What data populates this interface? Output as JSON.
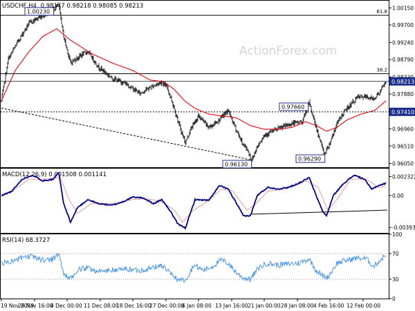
{
  "header": {
    "symbol": "USDCHF,H4",
    "ohlc": "0.98147 0.98218 0.98085 0.98213",
    "watermark": "ActionForex.com"
  },
  "chart_data": [
    {
      "type": "candlestick",
      "title": "USDCHF,H4",
      "ylim": [
        0.9595,
        1.0034
      ],
      "y_ticks": [
        "1.00150",
        "0.99700",
        "0.99240",
        "0.98790",
        "0.98330",
        "0.97880",
        "0.97410",
        "0.96960",
        "0.96510",
        "0.96050"
      ],
      "y_tick_values": [
        1.0015,
        0.997,
        0.9924,
        0.9879,
        0.9833,
        0.9788,
        0.9741,
        0.9696,
        0.9651,
        0.9605
      ],
      "last_price": 0.98213,
      "last_price_label": "0.98213",
      "support_label": "0.97410",
      "support_value": 0.9741,
      "fib_levels": [
        {
          "label": "61.8",
          "value": 0.99955
        },
        {
          "label": "38.2",
          "value": 0.98415
        }
      ],
      "annotations": [
        {
          "label": "1.00230",
          "value": 1.0023,
          "bar": 83
        },
        {
          "label": "0.97660",
          "value": 0.9766,
          "bar": 445
        },
        {
          "label": "0.96290",
          "value": 0.9629,
          "bar": 467
        },
        {
          "label": "0.96130",
          "value": 0.9613,
          "bar": 362
        }
      ],
      "trendline": {
        "from_value": 0.9751,
        "to_value": 0.9614
      },
      "path_anchors": [
        [
          0,
          0.977
        ],
        [
          10,
          0.988
        ],
        [
          25,
          0.993
        ],
        [
          40,
          0.9975
        ],
        [
          55,
          0.999
        ],
        [
          70,
          1.0005
        ],
        [
          83,
          1.0023
        ],
        [
          90,
          0.994
        ],
        [
          100,
          0.987
        ],
        [
          115,
          0.989
        ],
        [
          125,
          0.99
        ],
        [
          140,
          0.986
        ],
        [
          160,
          0.983
        ],
        [
          180,
          0.9815
        ],
        [
          200,
          0.979
        ],
        [
          210,
          0.98
        ],
        [
          220,
          0.981
        ],
        [
          232,
          0.982
        ],
        [
          240,
          0.9805
        ],
        [
          250,
          0.975
        ],
        [
          258,
          0.97
        ],
        [
          266,
          0.966
        ],
        [
          275,
          0.97
        ],
        [
          285,
          0.973
        ],
        [
          300,
          0.97
        ],
        [
          312,
          0.9715
        ],
        [
          320,
          0.973
        ],
        [
          328,
          0.9745
        ],
        [
          338,
          0.97
        ],
        [
          348,
          0.966
        ],
        [
          356,
          0.964
        ],
        [
          362,
          0.9613
        ],
        [
          370,
          0.965
        ],
        [
          380,
          0.968
        ],
        [
          392,
          0.969
        ],
        [
          405,
          0.97
        ],
        [
          420,
          0.971
        ],
        [
          435,
          0.9715
        ],
        [
          445,
          0.9766
        ],
        [
          452,
          0.972
        ],
        [
          460,
          0.967
        ],
        [
          467,
          0.9629
        ],
        [
          475,
          0.966
        ],
        [
          485,
          0.971
        ],
        [
          495,
          0.974
        ],
        [
          505,
          0.976
        ],
        [
          515,
          0.978
        ],
        [
          528,
          0.978
        ],
        [
          538,
          0.9775
        ],
        [
          548,
          0.9795
        ],
        [
          556,
          0.9821
        ]
      ],
      "ma_anchors": [
        [
          0,
          0.977
        ],
        [
          20,
          0.985
        ],
        [
          40,
          0.99
        ],
        [
          60,
          0.994
        ],
        [
          80,
          0.996
        ],
        [
          100,
          0.993
        ],
        [
          130,
          0.9895
        ],
        [
          160,
          0.987
        ],
        [
          190,
          0.985
        ],
        [
          215,
          0.9825
        ],
        [
          235,
          0.982
        ],
        [
          250,
          0.98
        ],
        [
          265,
          0.977
        ],
        [
          280,
          0.975
        ],
        [
          300,
          0.9735
        ],
        [
          320,
          0.973
        ],
        [
          340,
          0.9725
        ],
        [
          360,
          0.9705
        ],
        [
          380,
          0.9695
        ],
        [
          400,
          0.9695
        ],
        [
          420,
          0.97
        ],
        [
          440,
          0.9715
        ],
        [
          455,
          0.9705
        ],
        [
          470,
          0.969
        ],
        [
          485,
          0.97
        ],
        [
          500,
          0.972
        ],
        [
          520,
          0.9735
        ],
        [
          540,
          0.9745
        ],
        [
          556,
          0.977
        ]
      ]
    },
    {
      "type": "line",
      "title": "MACD(12,26,9) 0.001508 0.001141",
      "ylim": [
        -0.0046,
        0.0033
      ],
      "y_ticks": [
        "0.002322",
        "0.00",
        "-0.003932"
      ],
      "y_tick_values": [
        0.002322,
        0.0,
        -0.003932
      ],
      "macd_anchors": [
        [
          0,
          0.0
        ],
        [
          15,
          0.0005
        ],
        [
          30,
          0.002
        ],
        [
          45,
          0.0025
        ],
        [
          60,
          0.0018
        ],
        [
          75,
          0.002
        ],
        [
          83,
          0.0028
        ],
        [
          90,
          -0.001
        ],
        [
          100,
          -0.0033
        ],
        [
          110,
          -0.0015
        ],
        [
          125,
          -0.0005
        ],
        [
          140,
          -0.001
        ],
        [
          160,
          -0.0012
        ],
        [
          175,
          -0.0008
        ],
        [
          190,
          -0.0002
        ],
        [
          205,
          -0.0003
        ],
        [
          220,
          -0.001
        ],
        [
          232,
          -0.0005
        ],
        [
          245,
          -0.002
        ],
        [
          255,
          -0.0035
        ],
        [
          266,
          -0.004
        ],
        [
          280,
          -0.0005
        ],
        [
          300,
          -0.0006
        ],
        [
          315,
          0.0012
        ],
        [
          328,
          0.0008
        ],
        [
          340,
          -0.001
        ],
        [
          350,
          -0.0025
        ],
        [
          360,
          -0.0025
        ],
        [
          370,
          0.0
        ],
        [
          385,
          0.001
        ],
        [
          400,
          0.0008
        ],
        [
          415,
          0.001
        ],
        [
          430,
          0.0015
        ],
        [
          445,
          0.0022
        ],
        [
          455,
          0.0
        ],
        [
          465,
          -0.002
        ],
        [
          470,
          -0.0025
        ],
        [
          480,
          0.0
        ],
        [
          495,
          0.0015
        ],
        [
          510,
          0.0025
        ],
        [
          525,
          0.002
        ],
        [
          535,
          0.0008
        ],
        [
          545,
          0.0012
        ],
        [
          556,
          0.0015
        ]
      ],
      "signal_anchors": [
        [
          0,
          -0.0002
        ],
        [
          20,
          0.0008
        ],
        [
          40,
          0.002
        ],
        [
          60,
          0.002
        ],
        [
          85,
          0.0022
        ],
        [
          98,
          -0.0005
        ],
        [
          110,
          -0.0022
        ],
        [
          130,
          -0.001
        ],
        [
          160,
          -0.001
        ],
        [
          190,
          -0.0005
        ],
        [
          210,
          -0.0004
        ],
        [
          230,
          -0.0007
        ],
        [
          250,
          -0.0018
        ],
        [
          262,
          -0.0033
        ],
        [
          275,
          -0.002
        ],
        [
          300,
          -0.0006
        ],
        [
          318,
          0.0008
        ],
        [
          335,
          0.0005
        ],
        [
          355,
          -0.0018
        ],
        [
          368,
          -0.001
        ],
        [
          385,
          0.0005
        ],
        [
          410,
          0.0008
        ],
        [
          440,
          0.0018
        ],
        [
          458,
          0.001
        ],
        [
          472,
          -0.0018
        ],
        [
          485,
          -0.0005
        ],
        [
          505,
          0.002
        ],
        [
          528,
          0.002
        ],
        [
          545,
          0.001
        ],
        [
          556,
          0.0011
        ]
      ],
      "trendline": {
        "from_value": -0.0023,
        "to_value": -0.0018
      }
    },
    {
      "type": "line",
      "title": "RSI(14) 68.3727",
      "ylim": [
        0,
        100
      ],
      "y_ticks": [
        "100",
        "70",
        "30",
        "0"
      ],
      "y_tick_values": [
        100,
        70,
        30,
        0
      ],
      "rsi_anchors": [
        [
          0,
          55
        ],
        [
          15,
          58
        ],
        [
          30,
          63
        ],
        [
          45,
          65
        ],
        [
          60,
          60
        ],
        [
          75,
          62
        ],
        [
          83,
          70
        ],
        [
          90,
          38
        ],
        [
          100,
          30
        ],
        [
          112,
          45
        ],
        [
          125,
          48
        ],
        [
          140,
          42
        ],
        [
          160,
          44
        ],
        [
          180,
          46
        ],
        [
          200,
          44
        ],
        [
          220,
          48
        ],
        [
          232,
          52
        ],
        [
          245,
          38
        ],
        [
          255,
          30
        ],
        [
          266,
          28
        ],
        [
          278,
          52
        ],
        [
          292,
          44
        ],
        [
          305,
          50
        ],
        [
          318,
          60
        ],
        [
          328,
          55
        ],
        [
          340,
          40
        ],
        [
          350,
          32
        ],
        [
          360,
          30
        ],
        [
          372,
          48
        ],
        [
          385,
          55
        ],
        [
          400,
          52
        ],
        [
          415,
          54
        ],
        [
          430,
          55
        ],
        [
          445,
          62
        ],
        [
          455,
          44
        ],
        [
          465,
          35
        ],
        [
          472,
          33
        ],
        [
          485,
          55
        ],
        [
          500,
          60
        ],
        [
          515,
          63
        ],
        [
          528,
          62
        ],
        [
          538,
          50
        ],
        [
          548,
          60
        ],
        [
          556,
          68
        ]
      ]
    }
  ],
  "x_axis": {
    "labels": [
      "19 Nov 2019",
      "26 Nov 16:00",
      "4 Dec 00:00",
      "11 Dec 08:00",
      "18 Dec 16:00",
      "27 Dec 00:00",
      "6 Jan 08:00",
      "13 Jan 16:00",
      "21 Jan 00:00",
      "28 Jan 08:00",
      "4 Feb 16:00",
      "12 Feb 00:00"
    ]
  },
  "colors": {
    "candle": "#1e1e1e",
    "ma": "#e8000b",
    "macd": "#00008b",
    "signal": "#e39aa1",
    "rsi": "#3a8ee6",
    "hline": "#000000",
    "grid_border": "#000000",
    "label_box": "#1c2f8c",
    "axis_text": "#000000",
    "watermark": "#d9d9d9"
  }
}
